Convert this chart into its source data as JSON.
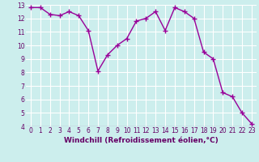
{
  "x": [
    0,
    1,
    2,
    3,
    4,
    5,
    6,
    7,
    8,
    9,
    10,
    11,
    12,
    13,
    14,
    15,
    16,
    17,
    18,
    19,
    20,
    21,
    22,
    23
  ],
  "y": [
    12.8,
    12.8,
    12.3,
    12.2,
    12.5,
    12.2,
    11.1,
    8.1,
    9.3,
    10.0,
    10.5,
    11.8,
    12.0,
    12.5,
    11.1,
    12.8,
    12.5,
    12.0,
    9.5,
    9.0,
    6.5,
    6.2,
    5.0,
    4.2
  ],
  "line_color": "#990099",
  "marker": "+",
  "marker_size": 4,
  "bg_color": "#cceeed",
  "grid_color": "#ffffff",
  "label_color": "#660066",
  "xlim_min": -0.5,
  "xlim_max": 23.5,
  "ylim_min": 4,
  "ylim_max": 13,
  "yticks": [
    4,
    5,
    6,
    7,
    8,
    9,
    10,
    11,
    12,
    13
  ],
  "xticks": [
    0,
    1,
    2,
    3,
    4,
    5,
    6,
    7,
    8,
    9,
    10,
    11,
    12,
    13,
    14,
    15,
    16,
    17,
    18,
    19,
    20,
    21,
    22,
    23
  ],
  "tick_label_size": 5.5,
  "xlabel": "Windchill (Refroidissement éolien,°C)",
  "xlabel_size": 6.5,
  "linewidth": 1.0
}
